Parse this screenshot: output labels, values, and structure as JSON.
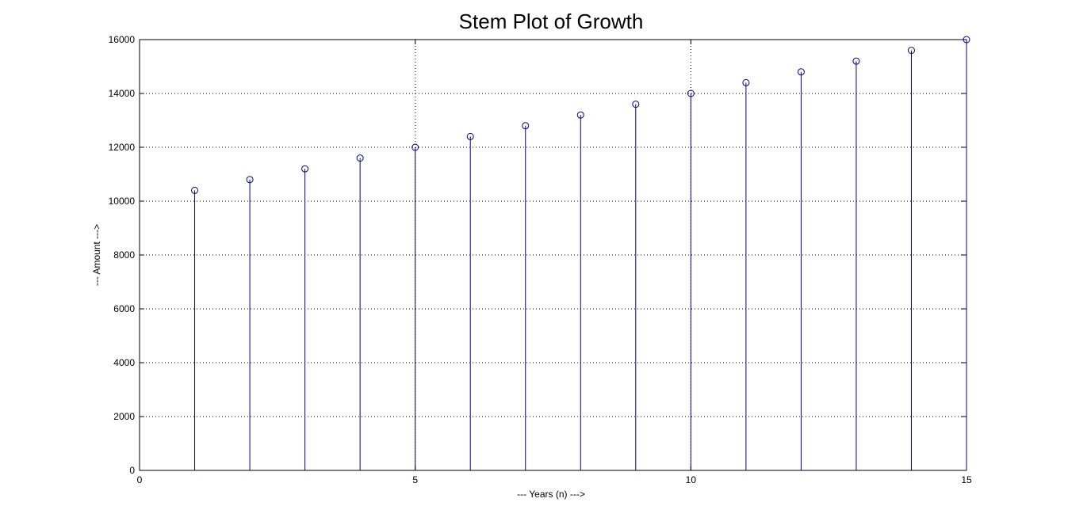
{
  "chart_data": {
    "type": "stem",
    "title": "Stem Plot of Growth",
    "xlabel": "--- Years (n) --->",
    "ylabel": "--- Amount --->",
    "xlim": [
      0,
      15
    ],
    "ylim": [
      0,
      16000
    ],
    "xticks": [
      0,
      5,
      10,
      15
    ],
    "yticks": [
      0,
      2000,
      4000,
      6000,
      8000,
      10000,
      12000,
      14000,
      16000
    ],
    "grid": true,
    "series": [
      {
        "x": [
          1,
          2,
          3,
          4,
          5,
          6,
          7,
          8,
          9,
          10,
          11,
          12,
          13,
          14,
          15
        ],
        "values": [
          10400,
          10800,
          11200,
          11600,
          12000,
          12400,
          12800,
          13200,
          13600,
          14000,
          14400,
          14800,
          15200,
          15600,
          16000
        ],
        "color": "#00008f",
        "marker": "circle"
      }
    ]
  }
}
